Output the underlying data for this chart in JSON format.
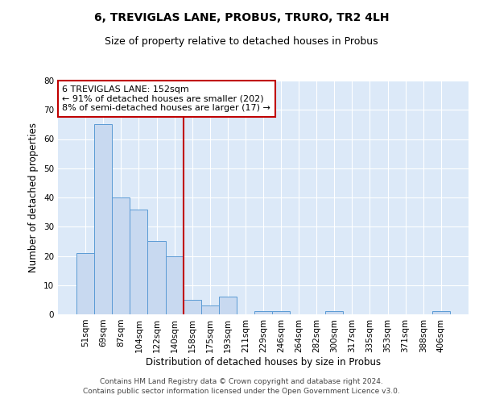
{
  "title": "6, TREVIGLAS LANE, PROBUS, TRURO, TR2 4LH",
  "subtitle": "Size of property relative to detached houses in Probus",
  "xlabel": "Distribution of detached houses by size in Probus",
  "ylabel": "Number of detached properties",
  "bar_labels": [
    "51sqm",
    "69sqm",
    "87sqm",
    "104sqm",
    "122sqm",
    "140sqm",
    "158sqm",
    "175sqm",
    "193sqm",
    "211sqm",
    "229sqm",
    "246sqm",
    "264sqm",
    "282sqm",
    "300sqm",
    "317sqm",
    "335sqm",
    "353sqm",
    "371sqm",
    "388sqm",
    "406sqm"
  ],
  "bar_values": [
    21,
    65,
    40,
    36,
    25,
    20,
    5,
    3,
    6,
    0,
    1,
    1,
    0,
    0,
    1,
    0,
    0,
    0,
    0,
    0,
    1
  ],
  "bar_color": "#c8d9f0",
  "bar_edgecolor": "#5b9bd5",
  "vline_pos": 5.5,
  "vline_color": "#c00000",
  "annotation_line1": "6 TREVIGLAS LANE: 152sqm",
  "annotation_line2": "← 91% of detached houses are smaller (202)",
  "annotation_line3": "8% of semi-detached houses are larger (17) →",
  "annotation_box_edgecolor": "#c00000",
  "ylim": [
    0,
    80
  ],
  "yticks": [
    0,
    10,
    20,
    30,
    40,
    50,
    60,
    70,
    80
  ],
  "plot_bg_color": "#dce9f8",
  "footer": "Contains HM Land Registry data © Crown copyright and database right 2024.\nContains public sector information licensed under the Open Government Licence v3.0.",
  "title_fontsize": 10,
  "subtitle_fontsize": 9,
  "annotation_fontsize": 8,
  "tick_fontsize": 7.5,
  "ylabel_fontsize": 8.5,
  "xlabel_fontsize": 8.5,
  "footer_fontsize": 6.5
}
